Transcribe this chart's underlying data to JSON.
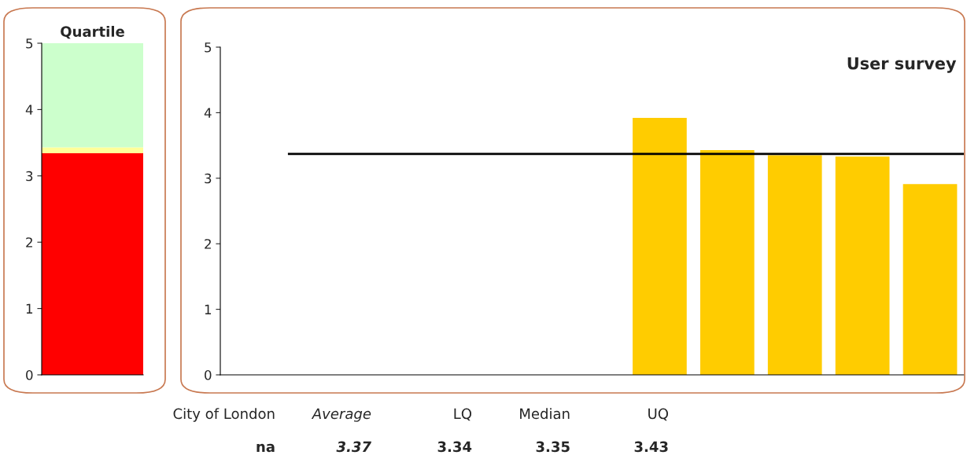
{
  "chart_data": [
    {
      "type": "bar",
      "title": "Quartile",
      "stacked": true,
      "categories": [
        null
      ],
      "series": [
        {
          "color": "#ff0000",
          "values": [
            3.34
          ]
        },
        {
          "color": "#ffff99",
          "values": [
            0.09
          ]
        },
        {
          "color": "#ccffcc",
          "values": [
            1.57
          ]
        }
      ],
      "ylim": [
        0,
        5
      ],
      "yticks": [
        0,
        1,
        2,
        3,
        4,
        5
      ],
      "tick_labels": "y"
    },
    {
      "type": "bar",
      "title": "User survey",
      "categories": [
        null,
        null,
        null,
        null,
        null,
        null,
        null,
        null,
        null,
        null,
        null
      ],
      "series": [
        {
          "color": "#ffcc00",
          "values": [
            null,
            null,
            null,
            null,
            null,
            null,
            3.92,
            3.43,
            3.35,
            3.33,
            2.91
          ]
        }
      ],
      "ylim": [
        0,
        5
      ],
      "yticks": [
        0,
        1,
        2,
        3,
        4,
        5
      ],
      "tick_labels": "y",
      "ref_lines": [
        {
          "axis": "y",
          "value": 3.37,
          "color": "#000000"
        }
      ],
      "annotations": [
        "City of London",
        "Average",
        "LQ",
        "Median",
        "UQ",
        "na",
        "3.37",
        "3.34",
        "3.35",
        "3.43"
      ]
    }
  ]
}
